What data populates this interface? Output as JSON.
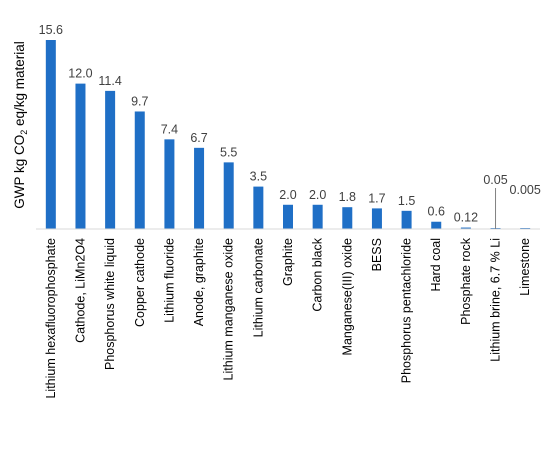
{
  "chart_data": {
    "type": "bar",
    "title": "",
    "xlabel": "",
    "ylabel": {
      "before": "GWP kg CO",
      "subscript": "2",
      "after": " eq/kg material"
    },
    "categories": [
      "Lithium hexafluorophosphate",
      "Cathode, LiMn2O4",
      "Phosphorus white liquid",
      "Copper cathode",
      "Lithium fluoride",
      "Anode, graphite",
      "Lithium manganese oxide",
      "Lithium carbonate",
      "Graphite",
      "Carbon black",
      "Manganese(III) oxide",
      "BESS",
      "Phosphorus pentachloride",
      "Hard coal",
      "Phosphate rock",
      "Lithium brine, 6.7 % Li",
      "Limestone"
    ],
    "values": [
      15.6,
      12.0,
      11.4,
      9.7,
      7.4,
      6.7,
      5.5,
      3.5,
      2.0,
      2.0,
      1.8,
      1.7,
      1.5,
      0.6,
      0.12,
      0.05,
      0.005
    ],
    "value_labels": [
      "15.6",
      "12.0",
      "11.4",
      "9.7",
      "7.4",
      "6.7",
      "5.5",
      "3.5",
      "2.0",
      "2.0",
      "1.8",
      "1.7",
      "1.5",
      "0.6",
      "0.12",
      "0.05",
      "0.005"
    ],
    "leader_line_on": "Lithium brine, 6.7 % Li",
    "ylim": [
      0,
      16
    ],
    "grid": false,
    "legend": "none",
    "bar_color": "#1f6fc6",
    "axis_color": "#d9d9d9"
  }
}
